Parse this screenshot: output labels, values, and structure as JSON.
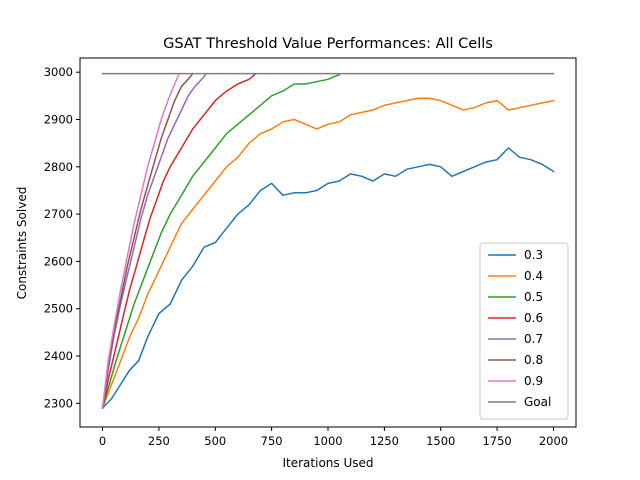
{
  "chart_data": {
    "type": "line",
    "title": "GSAT Threshold Value Performances: All Cells",
    "xlabel": "Iterations Used",
    "ylabel": "Constraints Solved",
    "xlim": [
      -100,
      2100
    ],
    "ylim": [
      2250,
      3030
    ],
    "xticks": [
      0,
      250,
      500,
      750,
      1000,
      1250,
      1500,
      1750,
      2000
    ],
    "yticks": [
      2300,
      2400,
      2500,
      2600,
      2700,
      2800,
      2900,
      3000
    ],
    "grid": false,
    "legend_position": "lower right",
    "series": [
      {
        "name": "0.3",
        "color": "#1f77b4",
        "points": [
          [
            0,
            2290
          ],
          [
            40,
            2310
          ],
          [
            80,
            2340
          ],
          [
            120,
            2370
          ],
          [
            160,
            2390
          ],
          [
            200,
            2440
          ],
          [
            250,
            2490
          ],
          [
            300,
            2510
          ],
          [
            350,
            2560
          ],
          [
            400,
            2590
          ],
          [
            450,
            2630
          ],
          [
            500,
            2640
          ],
          [
            550,
            2670
          ],
          [
            600,
            2700
          ],
          [
            650,
            2720
          ],
          [
            700,
            2750
          ],
          [
            750,
            2765
          ],
          [
            800,
            2740
          ],
          [
            850,
            2745
          ],
          [
            900,
            2745
          ],
          [
            950,
            2750
          ],
          [
            1000,
            2765
          ],
          [
            1050,
            2770
          ],
          [
            1100,
            2785
          ],
          [
            1150,
            2780
          ],
          [
            1200,
            2770
          ],
          [
            1250,
            2785
          ],
          [
            1300,
            2780
          ],
          [
            1350,
            2795
          ],
          [
            1400,
            2800
          ],
          [
            1450,
            2805
          ],
          [
            1500,
            2800
          ],
          [
            1550,
            2780
          ],
          [
            1600,
            2790
          ],
          [
            1650,
            2800
          ],
          [
            1700,
            2810
          ],
          [
            1750,
            2815
          ],
          [
            1800,
            2840
          ],
          [
            1850,
            2820
          ],
          [
            1900,
            2815
          ],
          [
            1950,
            2805
          ],
          [
            2000,
            2790
          ]
        ]
      },
      {
        "name": "0.4",
        "color": "#ff7f0e",
        "points": [
          [
            0,
            2290
          ],
          [
            40,
            2340
          ],
          [
            80,
            2390
          ],
          [
            120,
            2440
          ],
          [
            160,
            2480
          ],
          [
            200,
            2530
          ],
          [
            250,
            2580
          ],
          [
            300,
            2630
          ],
          [
            350,
            2680
          ],
          [
            400,
            2710
          ],
          [
            450,
            2740
          ],
          [
            500,
            2770
          ],
          [
            550,
            2800
          ],
          [
            600,
            2820
          ],
          [
            650,
            2850
          ],
          [
            700,
            2870
          ],
          [
            750,
            2880
          ],
          [
            800,
            2895
          ],
          [
            850,
            2900
          ],
          [
            900,
            2890
          ],
          [
            950,
            2880
          ],
          [
            1000,
            2890
          ],
          [
            1050,
            2895
          ],
          [
            1100,
            2910
          ],
          [
            1150,
            2915
          ],
          [
            1200,
            2920
          ],
          [
            1250,
            2930
          ],
          [
            1300,
            2935
          ],
          [
            1350,
            2940
          ],
          [
            1400,
            2945
          ],
          [
            1450,
            2945
          ],
          [
            1500,
            2940
          ],
          [
            1550,
            2930
          ],
          [
            1600,
            2920
          ],
          [
            1650,
            2925
          ],
          [
            1700,
            2935
          ],
          [
            1750,
            2940
          ],
          [
            1800,
            2920
          ],
          [
            1850,
            2925
          ],
          [
            1900,
            2930
          ],
          [
            1950,
            2935
          ],
          [
            2000,
            2940
          ]
        ]
      },
      {
        "name": "0.5",
        "color": "#2ca02c",
        "points": [
          [
            0,
            2290
          ],
          [
            30,
            2340
          ],
          [
            60,
            2390
          ],
          [
            100,
            2450
          ],
          [
            140,
            2510
          ],
          [
            180,
            2560
          ],
          [
            220,
            2610
          ],
          [
            260,
            2660
          ],
          [
            300,
            2700
          ],
          [
            350,
            2740
          ],
          [
            400,
            2780
          ],
          [
            450,
            2810
          ],
          [
            500,
            2840
          ],
          [
            550,
            2870
          ],
          [
            600,
            2890
          ],
          [
            650,
            2910
          ],
          [
            700,
            2930
          ],
          [
            750,
            2950
          ],
          [
            800,
            2960
          ],
          [
            850,
            2975
          ],
          [
            900,
            2975
          ],
          [
            950,
            2980
          ],
          [
            1000,
            2985
          ],
          [
            1050,
            2995
          ]
        ]
      },
      {
        "name": "0.6",
        "color": "#d62728",
        "points": [
          [
            0,
            2290
          ],
          [
            30,
            2360
          ],
          [
            60,
            2420
          ],
          [
            90,
            2480
          ],
          [
            120,
            2540
          ],
          [
            150,
            2590
          ],
          [
            180,
            2640
          ],
          [
            210,
            2690
          ],
          [
            240,
            2730
          ],
          [
            270,
            2770
          ],
          [
            300,
            2800
          ],
          [
            350,
            2840
          ],
          [
            400,
            2880
          ],
          [
            450,
            2910
          ],
          [
            500,
            2940
          ],
          [
            550,
            2960
          ],
          [
            600,
            2975
          ],
          [
            650,
            2985
          ],
          [
            680,
            2997
          ]
        ]
      },
      {
        "name": "0.7",
        "color": "#9467bd",
        "points": [
          [
            0,
            2290
          ],
          [
            25,
            2370
          ],
          [
            50,
            2440
          ],
          [
            80,
            2510
          ],
          [
            110,
            2570
          ],
          [
            140,
            2630
          ],
          [
            170,
            2690
          ],
          [
            200,
            2740
          ],
          [
            230,
            2780
          ],
          [
            260,
            2820
          ],
          [
            290,
            2860
          ],
          [
            320,
            2890
          ],
          [
            350,
            2920
          ],
          [
            380,
            2950
          ],
          [
            410,
            2970
          ],
          [
            440,
            2985
          ],
          [
            460,
            2997
          ]
        ]
      },
      {
        "name": "0.8",
        "color": "#8c564b",
        "points": [
          [
            0,
            2290
          ],
          [
            25,
            2380
          ],
          [
            50,
            2450
          ],
          [
            80,
            2520
          ],
          [
            110,
            2590
          ],
          [
            140,
            2650
          ],
          [
            170,
            2710
          ],
          [
            200,
            2760
          ],
          [
            230,
            2810
          ],
          [
            260,
            2860
          ],
          [
            290,
            2900
          ],
          [
            320,
            2940
          ],
          [
            350,
            2970
          ],
          [
            380,
            2985
          ],
          [
            400,
            2997
          ]
        ]
      },
      {
        "name": "0.9",
        "color": "#e377c2",
        "points": [
          [
            0,
            2290
          ],
          [
            25,
            2390
          ],
          [
            50,
            2460
          ],
          [
            80,
            2540
          ],
          [
            110,
            2610
          ],
          [
            140,
            2680
          ],
          [
            170,
            2740
          ],
          [
            200,
            2800
          ],
          [
            230,
            2850
          ],
          [
            260,
            2900
          ],
          [
            290,
            2940
          ],
          [
            320,
            2975
          ],
          [
            340,
            2997
          ]
        ]
      },
      {
        "name": "Goal",
        "color": "#7f7f7f",
        "points": [
          [
            0,
            2997
          ],
          [
            2000,
            2997
          ]
        ]
      }
    ]
  }
}
